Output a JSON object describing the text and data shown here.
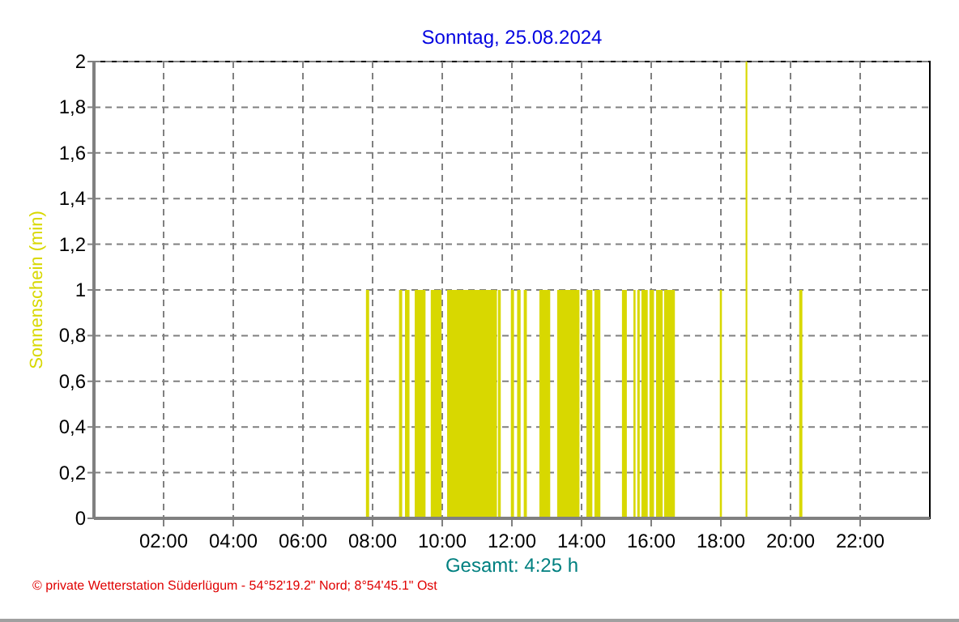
{
  "chart_data": {
    "type": "area",
    "title": "Sonntag, 25.08.2024",
    "ylabel": "Sonnenschein  (min)",
    "annotations": [
      "Gesamt: 4:25 h",
      "© private Wetterstation Süderlügum  -  54°52'19.2\" Nord; 8°54'45.1\" Ost"
    ],
    "x": [
      0,
      7.81,
      7.9,
      8.76,
      8.85,
      8.93,
      9.06,
      9.21,
      9.52,
      9.67,
      9.98,
      10.14,
      11.57,
      11.6,
      11.68,
      11.97,
      12.06,
      12.15,
      12.25,
      12.34,
      12.43,
      12.79,
      13.1,
      13.3,
      13.94,
      14.14,
      14.31,
      14.37,
      14.54,
      15.16,
      15.3,
      15.49,
      15.55,
      15.6,
      15.67,
      15.72,
      15.9,
      15.95,
      16.08,
      16.14,
      16.33,
      16.37,
      16.68,
      17.97,
      18.03,
      18.71,
      18.76,
      20.25,
      20.34,
      24
    ],
    "values": [
      0,
      1,
      0,
      1,
      0,
      1,
      0,
      1,
      0,
      1,
      0,
      1,
      0,
      1,
      0,
      1,
      0,
      1,
      0,
      1,
      0,
      1,
      0,
      1,
      0,
      1,
      0,
      1,
      0,
      1,
      0,
      1,
      0,
      1,
      0,
      1,
      0,
      1,
      0,
      1,
      0,
      1,
      0,
      1,
      0,
      2,
      0,
      1,
      0,
      0
    ],
    "color": "#d8d800",
    "xlim": [
      0,
      24
    ],
    "xticks": [
      {
        "value": 2,
        "label": "02:00"
      },
      {
        "value": 4,
        "label": "04:00"
      },
      {
        "value": 6,
        "label": "06:00"
      },
      {
        "value": 8,
        "label": "08:00"
      },
      {
        "value": 10,
        "label": "10:00"
      },
      {
        "value": 12,
        "label": "12:00"
      },
      {
        "value": 14,
        "label": "14:00"
      },
      {
        "value": 16,
        "label": "16:00"
      },
      {
        "value": 18,
        "label": "18:00"
      },
      {
        "value": 20,
        "label": "20:00"
      },
      {
        "value": 22,
        "label": "22:00"
      }
    ],
    "ylim": [
      0,
      2
    ],
    "yticks": [
      0,
      {
        "value": 0.2,
        "label": "0,2"
      },
      {
        "value": 0.4,
        "label": "0,4"
      },
      {
        "value": 0.6,
        "label": "0,6"
      },
      {
        "value": 0.8,
        "label": "0,8"
      },
      1,
      {
        "value": 1.2,
        "label": "1,2"
      },
      {
        "value": 1.4,
        "label": "1,4"
      },
      {
        "value": 1.6,
        "label": "1,6"
      },
      {
        "value": 1.8,
        "label": "1,8"
      },
      2
    ],
    "grid": true
  }
}
